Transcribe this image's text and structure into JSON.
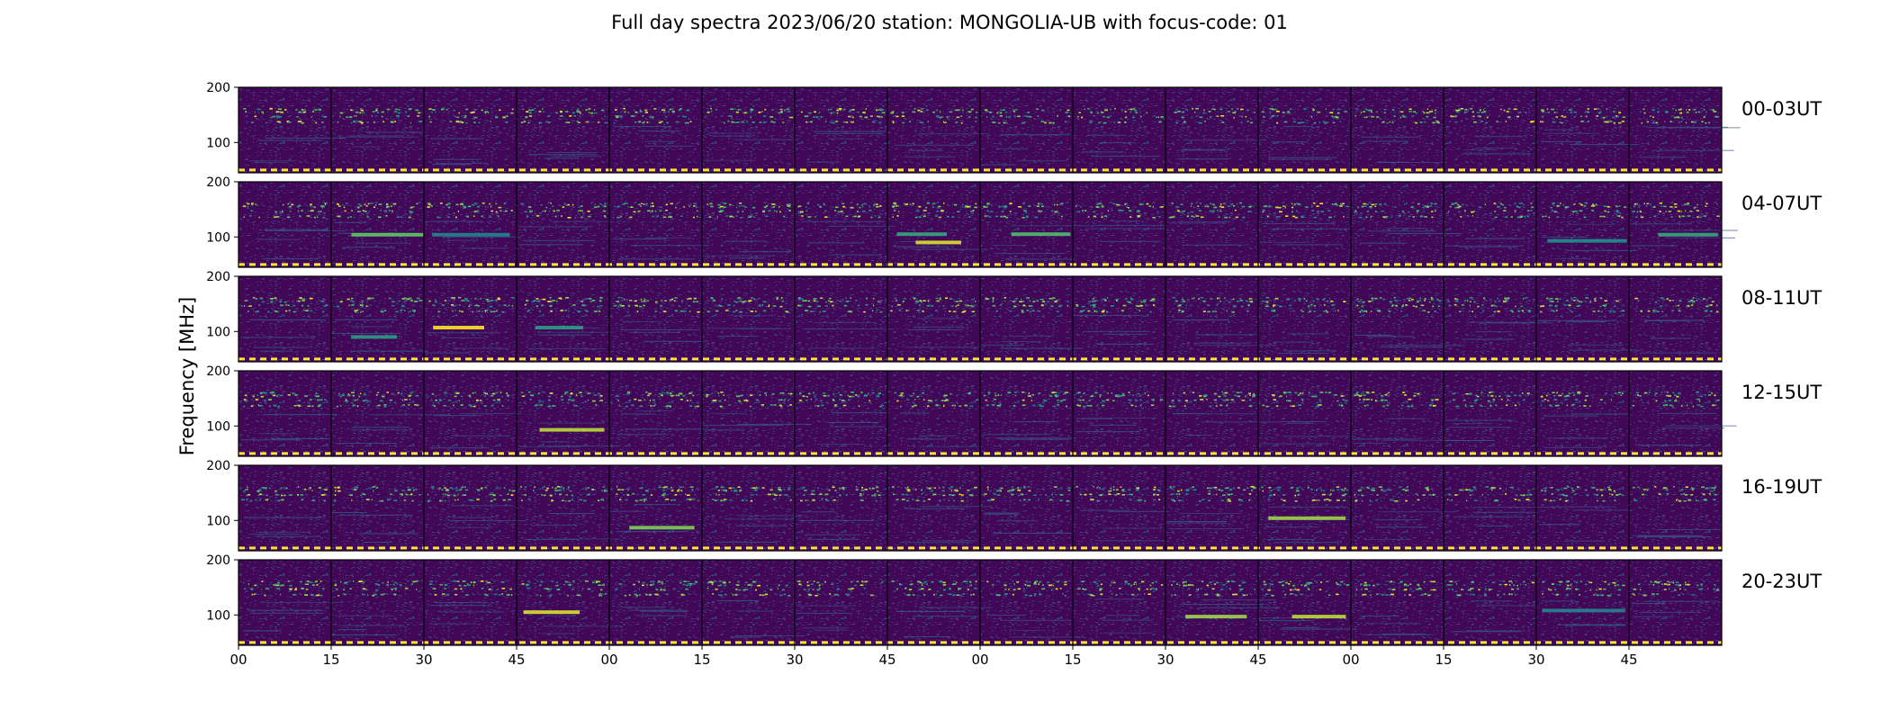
{
  "chart_data": {
    "type": "heatmap",
    "title": "Full day spectra 2023/06/20 station: MONGOLIA-UB with focus-code: 01",
    "ylabel": "Frequency [MHz]",
    "xlabel": "",
    "colormap": "viridis",
    "colormap_stops": [
      "#440154",
      "#3b528b",
      "#21918c",
      "#5ec962",
      "#fde725"
    ],
    "frequency_range_mhz": [
      45,
      200
    ],
    "y_tick_labels": [
      "100",
      "200"
    ],
    "x_tick_labels": [
      "00",
      "15",
      "30",
      "45",
      "00",
      "15",
      "30",
      "45",
      "00",
      "15",
      "30",
      "45",
      "00",
      "15",
      "30",
      "45"
    ],
    "panels_per_row": 16,
    "rows": [
      {
        "label": "00-03UT",
        "hours": [
          0,
          3
        ]
      },
      {
        "label": "04-07UT",
        "hours": [
          4,
          7
        ]
      },
      {
        "label": "08-11UT",
        "hours": [
          8,
          11
        ]
      },
      {
        "label": "12-15UT",
        "hours": [
          12,
          15
        ]
      },
      {
        "label": "16-19UT",
        "hours": [
          16,
          19
        ]
      },
      {
        "label": "20-23UT",
        "hours": [
          20,
          23
        ]
      }
    ],
    "persistent_lines_mhz": [
      50,
      138,
      148,
      156,
      161
    ],
    "notable_emission_bands": [
      {
        "row": 1,
        "panel": 1,
        "freq_mhz": 104,
        "intensity": 0.75
      },
      {
        "row": 1,
        "panel": 2,
        "freq_mhz": 104,
        "intensity": 0.45
      },
      {
        "row": 1,
        "panel": 7,
        "freq_mhz": 105,
        "intensity": 0.6
      },
      {
        "row": 1,
        "panel": 7,
        "freq_mhz": 90,
        "intensity": 0.95
      },
      {
        "row": 1,
        "panel": 8,
        "freq_mhz": 105,
        "intensity": 0.7
      },
      {
        "row": 1,
        "panel": 14,
        "freq_mhz": 93,
        "intensity": 0.5
      },
      {
        "row": 1,
        "panel": 15,
        "freq_mhz": 104,
        "intensity": 0.6
      },
      {
        "row": 2,
        "panel": 1,
        "freq_mhz": 90,
        "intensity": 0.55
      },
      {
        "row": 2,
        "panel": 2,
        "freq_mhz": 107,
        "intensity": 1.0
      },
      {
        "row": 2,
        "panel": 3,
        "freq_mhz": 107,
        "intensity": 0.55
      },
      {
        "row": 3,
        "panel": 3,
        "freq_mhz": 93,
        "intensity": 0.9
      },
      {
        "row": 4,
        "panel": 4,
        "freq_mhz": 87,
        "intensity": 0.8
      },
      {
        "row": 4,
        "panel": 11,
        "freq_mhz": 104,
        "intensity": 0.85
      },
      {
        "row": 5,
        "panel": 3,
        "freq_mhz": 105,
        "intensity": 0.95
      },
      {
        "row": 5,
        "panel": 10,
        "freq_mhz": 97,
        "intensity": 0.85
      },
      {
        "row": 5,
        "panel": 11,
        "freq_mhz": 97,
        "intensity": 0.9
      },
      {
        "row": 5,
        "panel": 14,
        "freq_mhz": 108,
        "intensity": 0.45
      }
    ]
  }
}
